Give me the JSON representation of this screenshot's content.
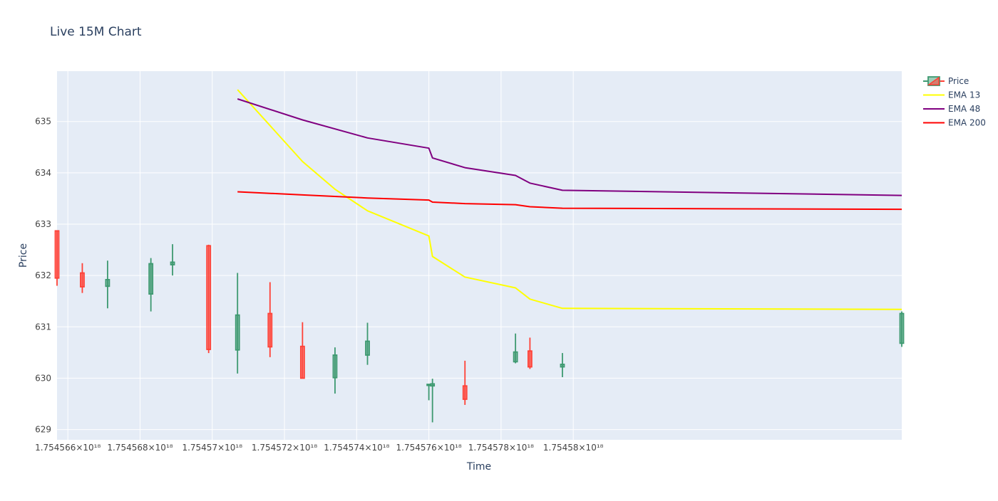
{
  "chart_data": {
    "type": "candlestick",
    "title": "Live 15M Chart",
    "xlabel": "Time",
    "ylabel": "Price",
    "x_scale": 1e+18,
    "x_range": [
      1.7545657e+18,
      1.7545891e+18
    ],
    "ylim": [
      628.8,
      635.98
    ],
    "grid": true,
    "legend_position": "top-right",
    "x_ticks": [
      {
        "value": 1.754566e+18,
        "label": "1.754566×10¹⁸"
      },
      {
        "value": 1.754568e+18,
        "label": "1.754568×10¹⁸"
      },
      {
        "value": 1.75457e+18,
        "label": "1.75457×10¹⁸"
      },
      {
        "value": 1.754572e+18,
        "label": "1.754572×10¹⁸"
      },
      {
        "value": 1.754574e+18,
        "label": "1.754574×10¹⁸"
      },
      {
        "value": 1.754576e+18,
        "label": "1.754576×10¹⁸"
      },
      {
        "value": 1.754578e+18,
        "label": "1.754578×10¹⁸"
      },
      {
        "value": 1.75458e+18,
        "label": "1.75458×10¹⁸"
      }
    ],
    "y_ticks": [
      {
        "value": 629,
        "label": "629"
      },
      {
        "value": 630,
        "label": "630"
      },
      {
        "value": 631,
        "label": "631"
      },
      {
        "value": 632,
        "label": "632"
      },
      {
        "value": 633,
        "label": "633"
      },
      {
        "value": 634,
        "label": "634"
      },
      {
        "value": 635,
        "label": "635"
      }
    ],
    "colors": {
      "increasing": "#3d9970",
      "decreasing": "#ff4136",
      "plot_bg": "#e5ecf6",
      "grid": "#ffffff",
      "text": "#2a3f5f"
    },
    "candles": [
      {
        "t": 1.7545657e+18,
        "open": 632.87,
        "high": 632.88,
        "low": 631.8,
        "close": 631.95
      },
      {
        "t": 1.7545664e+18,
        "open": 632.05,
        "high": 632.24,
        "low": 631.66,
        "close": 631.78
      },
      {
        "t": 1.7545671e+18,
        "open": 631.79,
        "high": 632.29,
        "low": 631.36,
        "close": 631.92
      },
      {
        "t": 1.7545683e+18,
        "open": 631.64,
        "high": 632.34,
        "low": 631.3,
        "close": 632.23
      },
      {
        "t": 1.7545689e+18,
        "open": 632.21,
        "high": 632.61,
        "low": 632.0,
        "close": 632.26
      },
      {
        "t": 1.7545699e+18,
        "open": 632.58,
        "high": 632.6,
        "low": 630.49,
        "close": 630.56
      },
      {
        "t": 1.7545707e+18,
        "open": 630.55,
        "high": 632.05,
        "low": 630.09,
        "close": 631.23
      },
      {
        "t": 1.7545716e+18,
        "open": 631.26,
        "high": 631.87,
        "low": 630.41,
        "close": 630.61
      },
      {
        "t": 1.7545725e+18,
        "open": 630.62,
        "high": 631.09,
        "low": 630.0,
        "close": 630.0
      },
      {
        "t": 1.7545734e+18,
        "open": 630.01,
        "high": 630.6,
        "low": 629.7,
        "close": 630.45
      },
      {
        "t": 1.7545743e+18,
        "open": 630.45,
        "high": 631.08,
        "low": 630.26,
        "close": 630.72
      },
      {
        "t": 1.754576e+18,
        "open": 629.88,
        "high": 629.88,
        "low": 629.57,
        "close": 629.88
      },
      {
        "t": 1.7545761e+18,
        "open": 629.85,
        "high": 629.99,
        "low": 629.14,
        "close": 629.89
      },
      {
        "t": 1.754577e+18,
        "open": 629.85,
        "high": 630.34,
        "low": 629.48,
        "close": 629.59
      },
      {
        "t": 1.7545784e+18,
        "open": 630.32,
        "high": 630.87,
        "low": 630.29,
        "close": 630.51
      },
      {
        "t": 1.7545788e+18,
        "open": 630.53,
        "high": 630.79,
        "low": 630.18,
        "close": 630.22
      },
      {
        "t": 1.7545797e+18,
        "open": 630.22,
        "high": 630.49,
        "low": 630.02,
        "close": 630.27
      },
      {
        "t": 1.7545891e+18,
        "open": 630.68,
        "high": 631.3,
        "low": 630.61,
        "close": 631.26
      }
    ],
    "series": [
      {
        "name": "EMA 13",
        "color": "#ffff00",
        "x": [
          1.7545707e+18,
          1.7545725e+18,
          1.7545734e+18,
          1.7545743e+18,
          1.754576e+18,
          1.7545761e+18,
          1.754577e+18,
          1.7545784e+18,
          1.7545788e+18,
          1.7545797e+18,
          1.7545891e+18
        ],
        "y": [
          635.62,
          634.22,
          633.68,
          633.26,
          632.77,
          632.37,
          631.97,
          631.76,
          631.54,
          631.36,
          631.34
        ]
      },
      {
        "name": "EMA 48",
        "color": "#800080",
        "x": [
          1.7545707e+18,
          1.7545725e+18,
          1.7545743e+18,
          1.754576e+18,
          1.7545761e+18,
          1.754577e+18,
          1.7545784e+18,
          1.7545788e+18,
          1.7545797e+18,
          1.7545891e+18
        ],
        "y": [
          635.44,
          635.03,
          634.68,
          634.48,
          634.29,
          634.1,
          633.95,
          633.8,
          633.66,
          633.56
        ]
      },
      {
        "name": "EMA 200",
        "color": "#ff0000",
        "x": [
          1.7545707e+18,
          1.7545725e+18,
          1.7545743e+18,
          1.754576e+18,
          1.7545761e+18,
          1.754577e+18,
          1.7545784e+18,
          1.7545788e+18,
          1.7545797e+18,
          1.7545891e+18
        ],
        "y": [
          633.63,
          633.57,
          633.51,
          633.47,
          633.43,
          633.4,
          633.38,
          633.34,
          633.31,
          633.29
        ]
      }
    ],
    "legend": [
      {
        "label": "Price",
        "kind": "candle"
      },
      {
        "label": "EMA 13",
        "kind": "line",
        "color": "#ffff00"
      },
      {
        "label": "EMA 48",
        "kind": "line",
        "color": "#800080"
      },
      {
        "label": "EMA 200",
        "kind": "line",
        "color": "#ff0000"
      }
    ]
  }
}
